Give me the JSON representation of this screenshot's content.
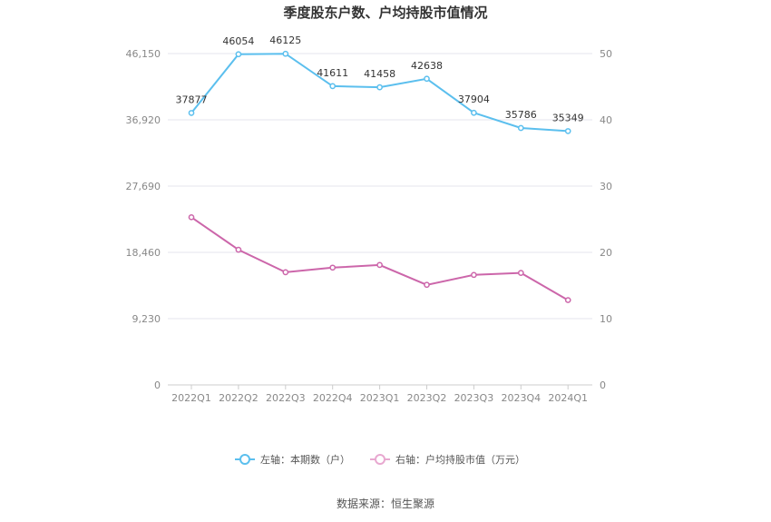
{
  "chart_data": {
    "type": "line",
    "title": "季度股东户数、户均持股市值情况",
    "categories": [
      "2022Q1",
      "2022Q2",
      "2022Q3",
      "2022Q4",
      "2023Q1",
      "2023Q2",
      "2023Q3",
      "2023Q4",
      "2024Q1"
    ],
    "left_axis": {
      "ylim": [
        0,
        46150
      ],
      "ticks": [
        "0",
        "9,230",
        "18,460",
        "27,690",
        "36,920",
        "46,150"
      ],
      "tick_values": [
        0,
        9230,
        18460,
        27690,
        36920,
        46150
      ]
    },
    "right_axis": {
      "ylim": [
        0,
        50
      ],
      "ticks": [
        "0",
        "10",
        "20",
        "30",
        "40",
        "50"
      ],
      "tick_values": [
        0,
        10,
        20,
        30,
        40,
        50
      ]
    },
    "series": [
      {
        "name": "左轴：本期数（户）",
        "axis": "left",
        "color": "#5bbfee",
        "values": [
          37877,
          46054,
          46125,
          41611,
          41458,
          42638,
          37904,
          35786,
          35349
        ],
        "labels": [
          "37877",
          "46054",
          "46125",
          "41611",
          "41458",
          "42638",
          "37904",
          "35786",
          "35349"
        ]
      },
      {
        "name": "右轴：户均持股市值（万元）",
        "axis": "right",
        "color": "#cc66aa",
        "legend_color": "#e8a8d0",
        "values": [
          25.3,
          20.4,
          17.0,
          17.7,
          18.1,
          15.1,
          16.6,
          16.9,
          12.8
        ]
      }
    ],
    "grid": true,
    "legend": "bottom-center"
  },
  "footer": {
    "source": "数据来源：恒生聚源"
  }
}
